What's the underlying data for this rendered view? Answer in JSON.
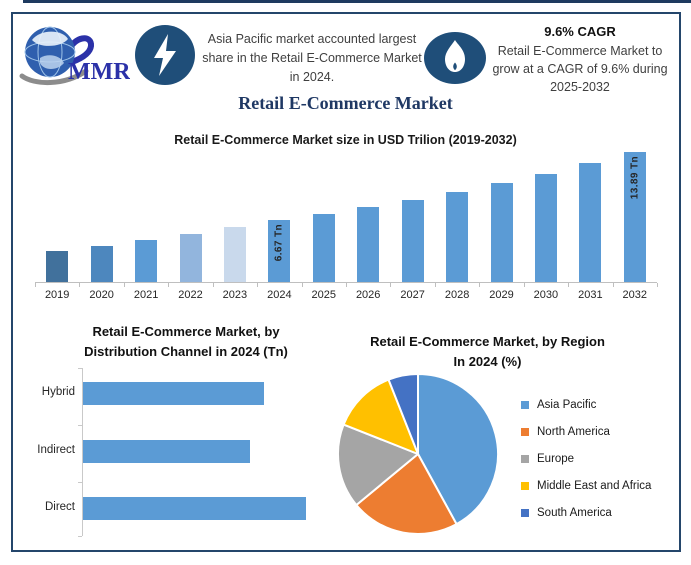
{
  "page": {
    "background": "#ffffff",
    "frame_color": "#24466b",
    "accent_navy": "#1f3864",
    "icon_circle_color": "#1f4e79"
  },
  "header": {
    "logo_text": "MMR",
    "logo_icon": "globe-icon",
    "highlight_note": "Asia Pacific market accounted largest share in the Retail E-Commerce Market in 2024.",
    "cagr_title": "9.6% CAGR",
    "cagr_note": "Retail E-Commerce Market to grow at a CAGR of 9.6% during 2025-2032"
  },
  "title": "Retail E-Commerce Market",
  "chart_data": [
    {
      "type": "bar",
      "title": "Retail E-Commerce Market size in USD Trilion (2019-2032)",
      "categories": [
        "2019",
        "2020",
        "2021",
        "2022",
        "2023",
        "2024",
        "2025",
        "2026",
        "2027",
        "2028",
        "2029",
        "2030",
        "2031",
        "2032"
      ],
      "values": [
        3.35,
        3.85,
        4.45,
        5.15,
        5.85,
        6.67,
        7.31,
        8.01,
        8.78,
        9.62,
        10.55,
        11.56,
        12.67,
        13.89
      ],
      "unit": "USD Trillion",
      "bar_labels": [
        null,
        null,
        null,
        null,
        null,
        "6.67 Tn",
        null,
        null,
        null,
        null,
        null,
        null,
        null,
        "13.89 Tn"
      ],
      "colors": [
        "#41719c",
        "#4d87be",
        "#5b9bd5",
        "#92b5dd",
        "#c9d9ec",
        "#5b9bd5",
        "#5b9bd5",
        "#5b9bd5",
        "#5b9bd5",
        "#5b9bd5",
        "#5b9bd5",
        "#5b9bd5",
        "#5b9bd5",
        "#5b9bd5"
      ],
      "ylim": [
        0,
        14.3
      ],
      "grid": false,
      "legend_position": "none"
    },
    {
      "type": "bar",
      "orientation": "horizontal",
      "title": "Retail E-Commerce Market, by Distribution Channel in 2024 (Tn)",
      "title_lines": [
        "Retail E-Commerce Market, by",
        "Distribution Channel in 2024 (Tn)"
      ],
      "categories": [
        "Hybrid",
        "Indirect",
        "Direct"
      ],
      "values": [
        2.12,
        1.95,
        2.61
      ],
      "unit": "USD Trillion",
      "bar_color": "#5b9bd5",
      "grid": false,
      "legend_position": "none"
    },
    {
      "type": "pie",
      "title": "Retail E-Commerce Market, by Region In 2024 (%)",
      "title_lines": [
        "Retail E-Commerce Market, by Region",
        "In 2024 (%)"
      ],
      "labels": [
        "Asia Pacific",
        "North America",
        "Europe",
        "Middle East and Africa",
        "South America"
      ],
      "values": [
        42,
        22,
        17,
        13,
        6
      ],
      "colors": [
        "#5b9bd5",
        "#ed7d31",
        "#a5a5a5",
        "#ffc000",
        "#4472c4"
      ],
      "legend_position": "right"
    }
  ]
}
